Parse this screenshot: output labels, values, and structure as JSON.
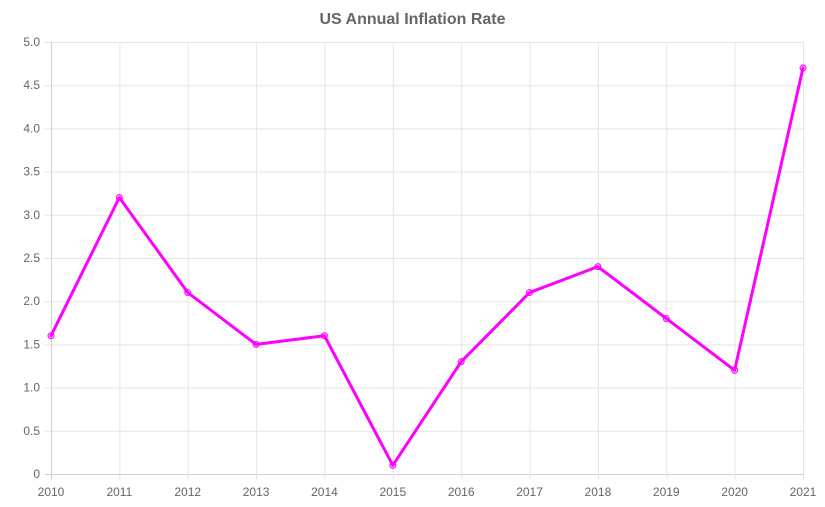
{
  "chart_data": {
    "type": "line",
    "title": "US Annual Inflation Rate",
    "xlabel": "",
    "ylabel": "",
    "categories": [
      "2010",
      "2011",
      "2012",
      "2013",
      "2014",
      "2015",
      "2016",
      "2017",
      "2018",
      "2019",
      "2020",
      "2021"
    ],
    "series": [
      {
        "values": [
          1.6,
          3.2,
          2.1,
          1.5,
          1.6,
          0.1,
          1.3,
          2.1,
          2.4,
          1.8,
          1.2,
          4.7
        ],
        "color": "#ff00ff"
      }
    ],
    "y_ticks": [
      "0",
      "0.5",
      "1.0",
      "1.5",
      "2.0",
      "2.5",
      "3.0",
      "3.5",
      "4.0",
      "4.5",
      "5.0"
    ],
    "ylim": [
      0,
      5
    ],
    "grid": true,
    "legend": "none"
  }
}
